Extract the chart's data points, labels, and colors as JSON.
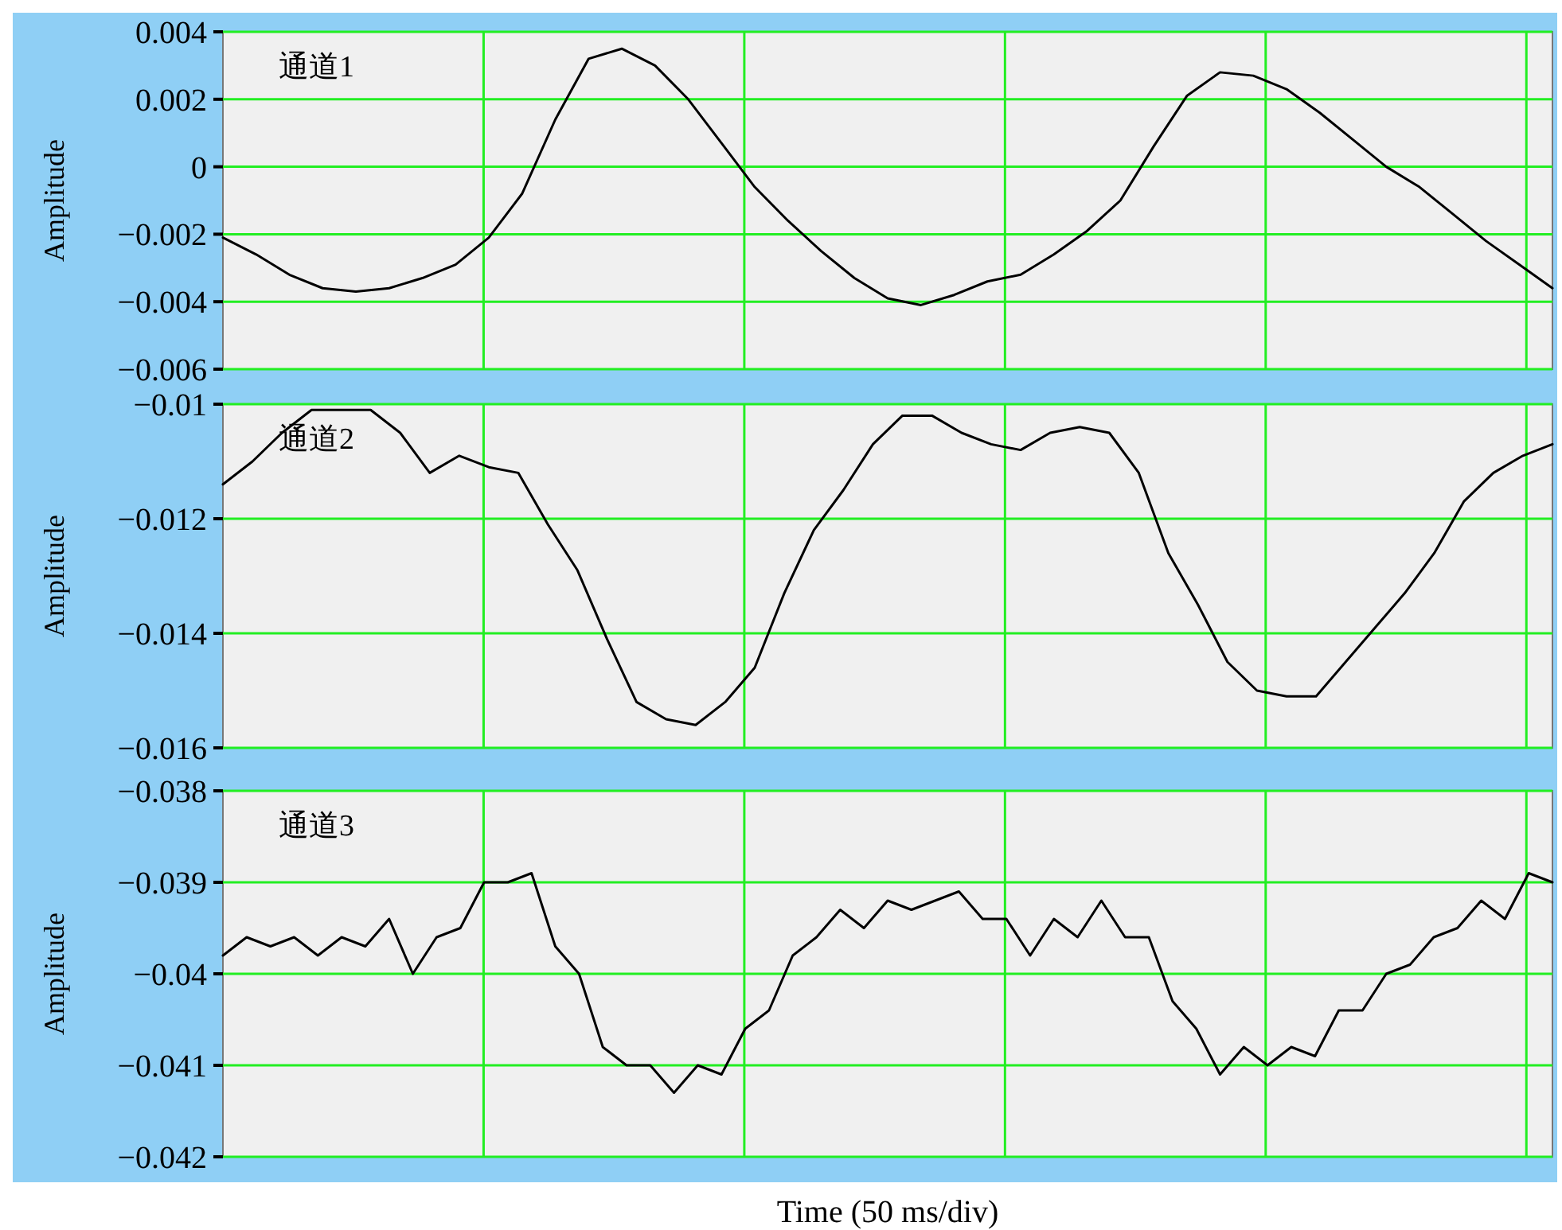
{
  "chart_data": [
    {
      "type": "line",
      "ylabel": "Amplitude",
      "annotations": [
        "通道1"
      ],
      "tick_labels": "y",
      "grid": true,
      "ylim": [
        -0.006,
        0.004
      ],
      "yticks": [
        {
          "value": 0.004,
          "label": "0.004"
        },
        {
          "value": 0.002,
          "label": "0.002"
        },
        0,
        {
          "value": -0.002,
          "label": "−0.002"
        },
        {
          "value": -0.004,
          "label": "−0.004"
        },
        {
          "value": -0.006,
          "label": "−0.006"
        }
      ],
      "categories": [
        null,
        null,
        null,
        null,
        null,
        null,
        null,
        null,
        null,
        null,
        null,
        null,
        null,
        null,
        null,
        null,
        null,
        null,
        null,
        null,
        null,
        null,
        null,
        null,
        null,
        null,
        null,
        null,
        null,
        null,
        null,
        null,
        null,
        null,
        null,
        null,
        null,
        null,
        null,
        null,
        null
      ],
      "series": [
        {
          "color": "#000000",
          "values": [
            -0.0021,
            -0.0026,
            -0.0032,
            -0.0036,
            -0.0037,
            -0.0036,
            -0.0033,
            -0.0029,
            -0.0021,
            -0.0008,
            0.0014,
            0.0032,
            0.0035,
            0.003,
            0.002,
            0.0007,
            -0.0006,
            -0.0016,
            -0.0025,
            -0.0033,
            -0.0039,
            -0.0041,
            -0.0038,
            -0.0034,
            -0.0032,
            -0.0026,
            -0.0019,
            -0.001,
            0.0006,
            0.0021,
            0.0028,
            0.0027,
            0.0023,
            0.0016,
            0.0008,
            0.0,
            -0.0006,
            -0.0014,
            -0.0022,
            -0.0029,
            -0.0036
          ]
        }
      ]
    },
    {
      "type": "line",
      "ylabel": "Amplitude",
      "annotations": [
        "通道2"
      ],
      "tick_labels": "y",
      "grid": true,
      "ylim": [
        -0.016,
        -0.01
      ],
      "yticks": [
        {
          "value": -0.01,
          "label": "−0.01"
        },
        {
          "value": -0.012,
          "label": "−0.012"
        },
        {
          "value": -0.014,
          "label": "−0.014"
        },
        {
          "value": -0.016,
          "label": "−0.016"
        }
      ],
      "categories": [
        null,
        null,
        null,
        null,
        null,
        null,
        null,
        null,
        null,
        null,
        null,
        null,
        null,
        null,
        null,
        null,
        null,
        null,
        null,
        null,
        null,
        null,
        null,
        null,
        null,
        null,
        null,
        null,
        null,
        null,
        null,
        null,
        null,
        null,
        null,
        null,
        null,
        null,
        null,
        null,
        null,
        null,
        null,
        null,
        null,
        null
      ],
      "series": [
        {
          "color": "#000000",
          "values": [
            -0.0114,
            -0.011,
            -0.0105,
            -0.0101,
            -0.0101,
            -0.0101,
            -0.0105,
            -0.0112,
            -0.0109,
            -0.0111,
            -0.0112,
            -0.0121,
            -0.0129,
            -0.0141,
            -0.0152,
            -0.0155,
            -0.0156,
            -0.0152,
            -0.0146,
            -0.0133,
            -0.0122,
            -0.0115,
            -0.0107,
            -0.0102,
            -0.0102,
            -0.0105,
            -0.0107,
            -0.0108,
            -0.0105,
            -0.0104,
            -0.0105,
            -0.0112,
            -0.0126,
            -0.0135,
            -0.0145,
            -0.015,
            -0.0151,
            -0.0151,
            -0.0145,
            -0.0139,
            -0.0133,
            -0.0126,
            -0.0117,
            -0.0112,
            -0.0109,
            -0.0107
          ]
        }
      ]
    },
    {
      "type": "line",
      "ylabel": "Amplitude",
      "xlabel": "Time (50 ms/div)",
      "annotations": [
        "通道3"
      ],
      "tick_labels": "y",
      "grid": true,
      "ylim": [
        -0.042,
        -0.038
      ],
      "yticks": [
        {
          "value": -0.038,
          "label": "−0.038"
        },
        {
          "value": -0.039,
          "label": "−0.039"
        },
        {
          "value": -0.04,
          "label": "−0.04"
        },
        {
          "value": -0.041,
          "label": "−0.041"
        },
        {
          "value": -0.042,
          "label": "−0.042"
        }
      ],
      "categories": [
        null,
        null,
        null,
        null,
        null,
        null,
        null,
        null,
        null,
        null,
        null,
        null,
        null,
        null,
        null,
        null,
        null,
        null,
        null,
        null,
        null,
        null,
        null,
        null,
        null,
        null,
        null,
        null,
        null,
        null,
        null,
        null,
        null,
        null,
        null,
        null,
        null,
        null,
        null,
        null,
        null,
        null,
        null,
        null,
        null,
        null,
        null,
        null,
        null,
        null,
        null,
        null,
        null,
        null,
        null,
        null,
        null
      ],
      "series": [
        {
          "color": "#000000",
          "values": [
            -0.0398,
            -0.0396,
            -0.0397,
            -0.0396,
            -0.0398,
            -0.0396,
            -0.0397,
            -0.0394,
            -0.04,
            -0.0396,
            -0.0395,
            -0.039,
            -0.039,
            -0.0389,
            -0.0397,
            -0.04,
            -0.0408,
            -0.041,
            -0.041,
            -0.0413,
            -0.041,
            -0.0411,
            -0.0406,
            -0.0404,
            -0.0398,
            -0.0396,
            -0.0393,
            -0.0395,
            -0.0392,
            -0.0393,
            -0.0392,
            -0.0391,
            -0.0394,
            -0.0394,
            -0.0398,
            -0.0394,
            -0.0396,
            -0.0392,
            -0.0396,
            -0.0396,
            -0.0403,
            -0.0406,
            -0.0411,
            -0.0408,
            -0.041,
            -0.0408,
            -0.0409,
            -0.0404,
            -0.0404,
            -0.04,
            -0.0399,
            -0.0396,
            -0.0395,
            -0.0392,
            -0.0394,
            -0.0389,
            -0.039
          ]
        }
      ]
    }
  ]
}
